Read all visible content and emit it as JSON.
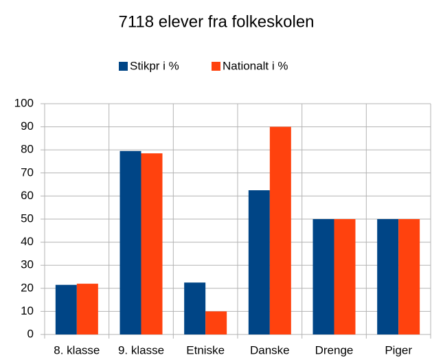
{
  "chart_data": {
    "type": "bar",
    "title": "7118 elever fra folkeskolen",
    "categories": [
      "8. klasse",
      "9. klasse",
      "Etniske",
      "Danske",
      "Drenge",
      "Piger"
    ],
    "series": [
      {
        "name": "Stikpr i %",
        "color": "#004586",
        "values": [
          21.5,
          79.5,
          22.5,
          62.5,
          50,
          50
        ]
      },
      {
        "name": "Nationalt i %",
        "color": "#ff420e",
        "values": [
          22,
          78.5,
          10,
          90,
          50,
          50
        ]
      }
    ],
    "ylim": [
      0,
      100
    ],
    "yticks": [
      0,
      10,
      20,
      30,
      40,
      50,
      60,
      70,
      80,
      90,
      100
    ],
    "grid": true,
    "legend": "top"
  }
}
